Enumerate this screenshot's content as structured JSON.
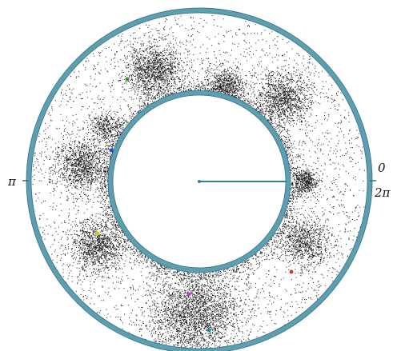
{
  "labels": {
    "zero": "0",
    "two_pi": "2π",
    "pi": "π"
  },
  "colors": {
    "ring": "#5d9fb0",
    "ring_dark": "#2f6f80",
    "dot": "#151515",
    "background": "#ffffff"
  },
  "markers": [
    {
      "name": "marker-green",
      "color": "#2e9a2e"
    },
    {
      "name": "marker-blue",
      "color": "#2b3fd1"
    },
    {
      "name": "marker-yellow",
      "color": "#d8c21a"
    },
    {
      "name": "marker-magenta",
      "color": "#c43ad0"
    },
    {
      "name": "marker-teal",
      "color": "#1f8a92"
    },
    {
      "name": "marker-red",
      "color": "#d43a2a"
    }
  ]
}
